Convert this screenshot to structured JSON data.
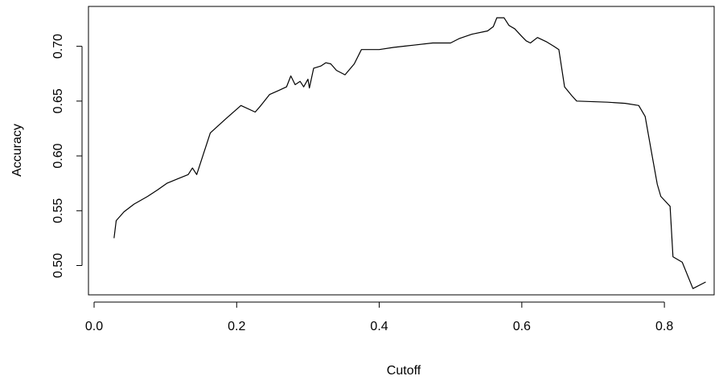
{
  "chart_data": {
    "type": "line",
    "title": "",
    "xlabel": "Cutoff",
    "ylabel": "Accuracy",
    "xlim": [
      0.0,
      0.86
    ],
    "ylim": [
      0.478,
      0.728
    ],
    "x_ticks": [
      0.0,
      0.2,
      0.4,
      0.6,
      0.8
    ],
    "x_tick_labels": [
      "0.0",
      "0.2",
      "0.4",
      "0.6",
      "0.8"
    ],
    "y_ticks": [
      0.5,
      0.55,
      0.6,
      0.65,
      0.7
    ],
    "y_tick_labels": [
      "0.50",
      "0.55",
      "0.60",
      "0.65",
      "0.70"
    ],
    "grid": false,
    "legend": "none",
    "line_color": "#000000",
    "series": [
      {
        "x": [
          0.028,
          0.031,
          0.042,
          0.056,
          0.075,
          0.089,
          0.102,
          0.117,
          0.132,
          0.138,
          0.144,
          0.163,
          0.185,
          0.206,
          0.226,
          0.234,
          0.246,
          0.26,
          0.27,
          0.276,
          0.282,
          0.289,
          0.294,
          0.3,
          0.302,
          0.308,
          0.318,
          0.325,
          0.332,
          0.34,
          0.352,
          0.365,
          0.375,
          0.4,
          0.42,
          0.447,
          0.475,
          0.5,
          0.512,
          0.53,
          0.552,
          0.56,
          0.565,
          0.575,
          0.582,
          0.59,
          0.6,
          0.606,
          0.612,
          0.622,
          0.635,
          0.645,
          0.652,
          0.66,
          0.67,
          0.677,
          0.72,
          0.745,
          0.764,
          0.773,
          0.782,
          0.79,
          0.795,
          0.808,
          0.812,
          0.825,
          0.84,
          0.858
        ],
        "y": [
          0.525,
          0.541,
          0.549,
          0.556,
          0.563,
          0.569,
          0.575,
          0.579,
          0.583,
          0.589,
          0.583,
          0.621,
          0.634,
          0.646,
          0.64,
          0.646,
          0.656,
          0.66,
          0.663,
          0.673,
          0.665,
          0.668,
          0.663,
          0.67,
          0.662,
          0.68,
          0.682,
          0.685,
          0.684,
          0.678,
          0.674,
          0.684,
          0.697,
          0.697,
          0.699,
          0.701,
          0.703,
          0.703,
          0.707,
          0.711,
          0.714,
          0.718,
          0.726,
          0.726,
          0.719,
          0.716,
          0.709,
          0.705,
          0.703,
          0.708,
          0.704,
          0.7,
          0.697,
          0.663,
          0.655,
          0.65,
          0.649,
          0.648,
          0.646,
          0.636,
          0.603,
          0.574,
          0.563,
          0.554,
          0.508,
          0.503,
          0.479,
          0.485
        ]
      }
    ]
  }
}
